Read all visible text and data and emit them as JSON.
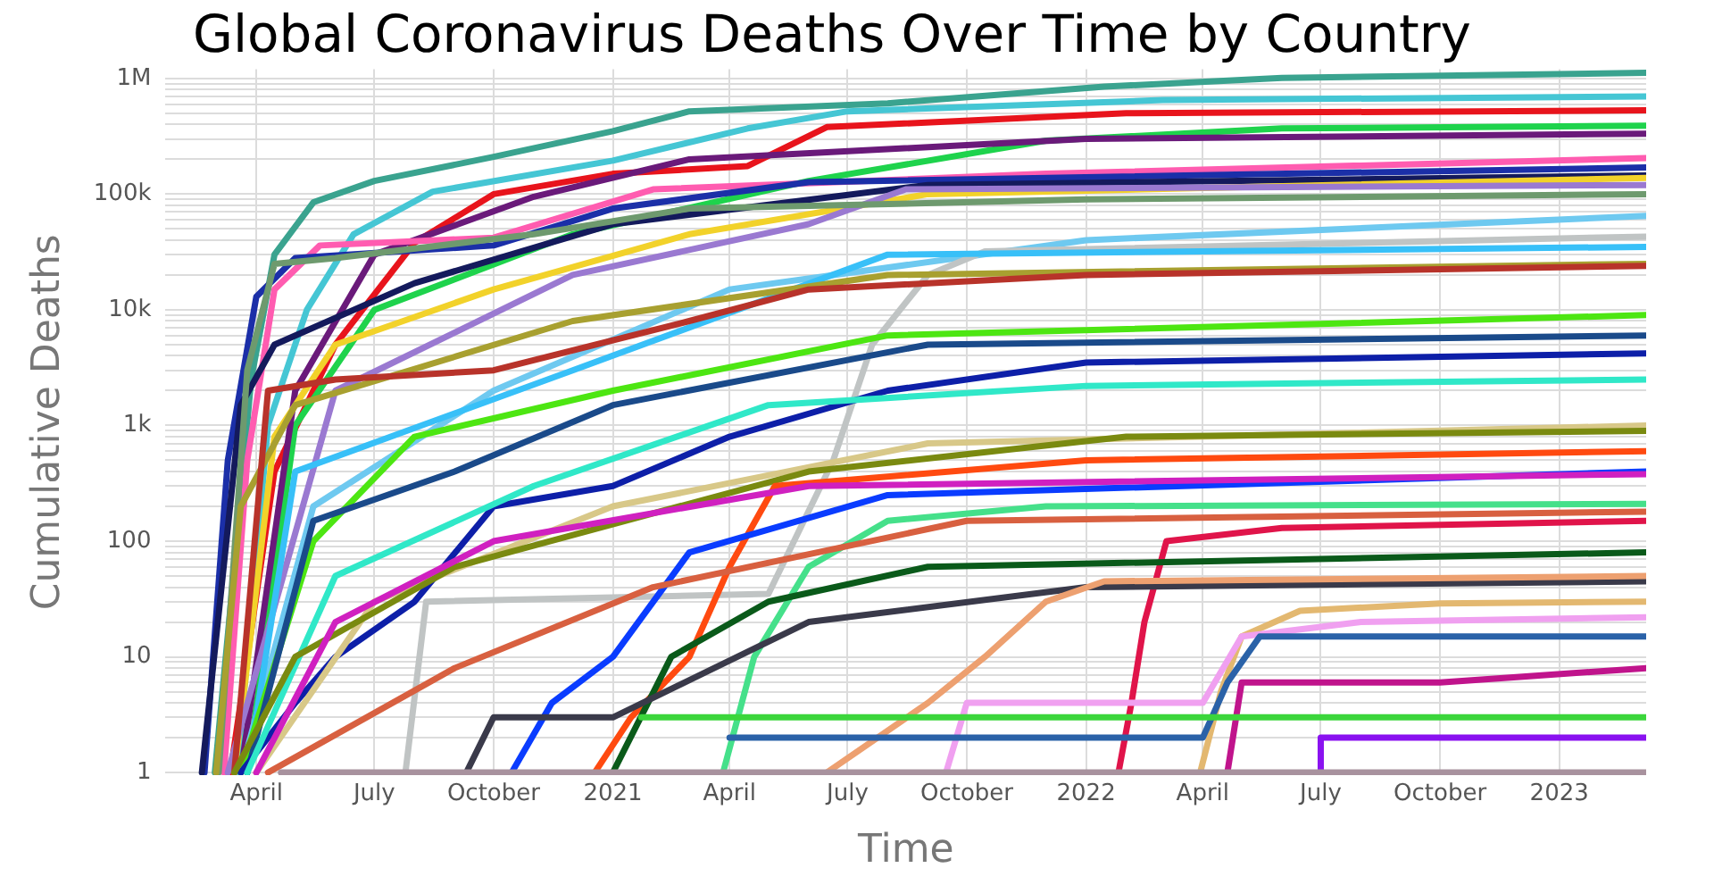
{
  "chart_data": {
    "type": "line",
    "title": "Global Coronavirus Deaths Over Time by Country",
    "xlabel": "Time",
    "ylabel": "Cumulative Deaths",
    "log": "y",
    "grid": true,
    "legend": false,
    "marker": "none",
    "line_style": "solid",
    "xlim": [
      "2020-01-22",
      "2023-03-09"
    ],
    "xticks": [
      {
        "value": "2020-04-01",
        "label": "April"
      },
      {
        "value": "2020-07-01",
        "label": "July"
      },
      {
        "value": "2020-10-01",
        "label": "October"
      },
      {
        "value": "2021-01-01",
        "label": "2021"
      },
      {
        "value": "2021-04-01",
        "label": "April"
      },
      {
        "value": "2021-07-01",
        "label": "July"
      },
      {
        "value": "2021-10-01",
        "label": "October"
      },
      {
        "value": "2022-01-01",
        "label": "2022"
      },
      {
        "value": "2022-04-01",
        "label": "April"
      },
      {
        "value": "2022-07-01",
        "label": "July"
      },
      {
        "value": "2022-10-01",
        "label": "October"
      },
      {
        "value": "2023-01-01",
        "label": "2023"
      }
    ],
    "ylim": [
      0.95,
      1200000
    ],
    "yticks": [
      1,
      {
        "value": 2,
        "label": null
      },
      {
        "value": 3,
        "label": null
      },
      {
        "value": 4,
        "label": null
      },
      {
        "value": 5,
        "label": null
      },
      {
        "value": 6,
        "label": null
      },
      {
        "value": 7,
        "label": null
      },
      {
        "value": 8,
        "label": null
      },
      {
        "value": 9,
        "label": null
      },
      10,
      {
        "value": 20,
        "label": null
      },
      {
        "value": 30,
        "label": null
      },
      {
        "value": 40,
        "label": null
      },
      {
        "value": 50,
        "label": null
      },
      {
        "value": 60,
        "label": null
      },
      {
        "value": 70,
        "label": null
      },
      {
        "value": 80,
        "label": null
      },
      {
        "value": 90,
        "label": null
      },
      100,
      {
        "value": 200,
        "label": null
      },
      {
        "value": 300,
        "label": null
      },
      {
        "value": 400,
        "label": null
      },
      {
        "value": 500,
        "label": null
      },
      {
        "value": 600,
        "label": null
      },
      {
        "value": 700,
        "label": null
      },
      {
        "value": 800,
        "label": null
      },
      {
        "value": 900,
        "label": null
      },
      {
        "value": 1000,
        "label": "1k"
      },
      {
        "value": 2000,
        "label": null
      },
      {
        "value": 3000,
        "label": null
      },
      {
        "value": 4000,
        "label": null
      },
      {
        "value": 5000,
        "label": null
      },
      {
        "value": 6000,
        "label": null
      },
      {
        "value": 7000,
        "label": null
      },
      {
        "value": 8000,
        "label": null
      },
      {
        "value": 9000,
        "label": null
      },
      {
        "value": 10000,
        "label": "10k"
      },
      {
        "value": 20000,
        "label": null
      },
      {
        "value": 30000,
        "label": null
      },
      {
        "value": 40000,
        "label": null
      },
      {
        "value": 50000,
        "label": null
      },
      {
        "value": 60000,
        "label": null
      },
      {
        "value": 70000,
        "label": null
      },
      {
        "value": 80000,
        "label": null
      },
      {
        "value": 90000,
        "label": null
      },
      {
        "value": 100000,
        "label": "100k"
      },
      {
        "value": 200000,
        "label": null
      },
      {
        "value": 300000,
        "label": null
      },
      {
        "value": 400000,
        "label": null
      },
      {
        "value": 500000,
        "label": null
      },
      {
        "value": 600000,
        "label": null
      },
      {
        "value": 700000,
        "label": null
      },
      {
        "value": 800000,
        "label": null
      },
      {
        "value": 900000,
        "label": null
      },
      {
        "value": 1000000,
        "label": "1M"
      }
    ],
    "series": [
      {
        "color": "#a8929e",
        "x": [
          "2020-04-20",
          "2023-03-09"
        ],
        "values": [
          1,
          1
        ]
      },
      {
        "color": "#3bd63b",
        "x": [
          "2021-01-23",
          "2023-03-09"
        ],
        "values": [
          3,
          3
        ]
      },
      {
        "color": "#8a12f0",
        "x": [
          "2022-06-30",
          "2022-07-01",
          "2023-03-09"
        ],
        "values": [
          1,
          2,
          2
        ]
      },
      {
        "color": "#c0148c",
        "x": [
          "2022-04-20",
          "2022-05-01",
          "2022-10-01",
          "2023-03-09"
        ],
        "values": [
          1,
          6,
          6,
          8
        ]
      },
      {
        "color": "#2a62a8",
        "x": [
          "2021-04-01",
          "2022-04-01",
          "2022-04-20",
          "2022-05-15",
          "2023-03-09"
        ],
        "values": [
          2,
          2,
          6,
          15,
          15
        ]
      },
      {
        "color": "#f0a0f0",
        "x": [
          "2021-09-15",
          "2021-10-01",
          "2022-04-01",
          "2022-05-01",
          "2022-08-01",
          "2023-03-09"
        ],
        "values": [
          1,
          4,
          4,
          15,
          20,
          22
        ]
      },
      {
        "color": "#e3b870",
        "x": [
          "2022-03-30",
          "2022-04-15",
          "2022-05-01",
          "2022-06-15",
          "2022-10-01",
          "2023-03-09"
        ],
        "values": [
          1,
          5,
          15,
          25,
          29,
          30
        ]
      },
      {
        "color": "#eda070",
        "x": [
          "2021-06-15",
          "2021-09-01",
          "2021-10-15",
          "2021-12-01",
          "2022-01-15",
          "2023-03-09"
        ],
        "values": [
          1,
          4,
          10,
          30,
          45,
          50
        ]
      },
      {
        "color": "#3a3a4a",
        "x": [
          "2020-09-10",
          "2020-10-01",
          "2021-01-01",
          "2021-06-01",
          "2022-01-01",
          "2023-03-09"
        ],
        "values": [
          1,
          3,
          3,
          20,
          40,
          45
        ]
      },
      {
        "color": "#0a5a1a",
        "x": [
          "2021-01-01",
          "2021-02-15",
          "2021-05-01",
          "2021-09-01",
          "2023-03-09"
        ],
        "values": [
          1,
          10,
          30,
          60,
          80
        ]
      },
      {
        "color": "#e0144a",
        "x": [
          "2022-01-26",
          "2022-02-05",
          "2022-02-15",
          "2022-03-04",
          "2022-06-01",
          "2023-03-09"
        ],
        "values": [
          1,
          4,
          20,
          100,
          130,
          150
        ]
      },
      {
        "color": "#d86040",
        "x": [
          "2020-04-10",
          "2020-09-01",
          "2021-02-01",
          "2021-10-01",
          "2023-03-09"
        ],
        "values": [
          1,
          8,
          40,
          150,
          180
        ]
      },
      {
        "color": "#45e08a",
        "x": [
          "2021-03-27",
          "2021-04-20",
          "2021-06-01",
          "2021-08-01",
          "2021-12-01",
          "2023-03-09"
        ],
        "values": [
          1,
          10,
          60,
          150,
          200,
          210
        ]
      },
      {
        "color": "#d020c0",
        "x": [
          "2020-04-01",
          "2020-06-01",
          "2020-10-01",
          "2021-06-01",
          "2023-03-09"
        ],
        "values": [
          1,
          20,
          100,
          300,
          380
        ]
      },
      {
        "color": "#0a3cff",
        "x": [
          "2020-10-15",
          "2020-11-15",
          "2021-01-01",
          "2021-03-01",
          "2021-08-01",
          "2023-03-09"
        ],
        "values": [
          1,
          4,
          10,
          80,
          250,
          400
        ]
      },
      {
        "color": "#ff4a10",
        "x": [
          "2020-12-18",
          "2021-01-15",
          "2021-03-01",
          "2021-04-01",
          "2021-05-06",
          "2022-01-01",
          "2023-03-09"
        ],
        "values": [
          1,
          3,
          10,
          60,
          300,
          500,
          600
        ]
      },
      {
        "color": "#7a8a10",
        "x": [
          "2020-03-15",
          "2020-05-01",
          "2020-09-01",
          "2021-06-01",
          "2022-02-01",
          "2023-03-09"
        ],
        "values": [
          1,
          10,
          60,
          400,
          800,
          900
        ]
      },
      {
        "color": "#d8c888",
        "x": [
          "2020-04-01",
          "2020-07-01",
          "2021-01-01",
          "2021-09-01",
          "2023-03-09"
        ],
        "values": [
          1,
          30,
          200,
          700,
          1000
        ]
      },
      {
        "color": "#30e8c8",
        "x": [
          "2020-03-25",
          "2020-06-01",
          "2020-11-01",
          "2021-05-01",
          "2022-01-01",
          "2023-03-09"
        ],
        "values": [
          1,
          50,
          300,
          1500,
          2200,
          2500
        ]
      },
      {
        "color": "#0d1fa8",
        "x": [
          "2020-03-20",
          "2020-05-01",
          "2020-06-01",
          "2020-08-01",
          "2020-10-01",
          "2021-01-01",
          "2021-04-01",
          "2021-08-01",
          "2022-01-01",
          "2023-03-09"
        ],
        "values": [
          1,
          4,
          10,
          30,
          200,
          300,
          800,
          2000,
          3500,
          4200
        ]
      },
      {
        "color": "#1a4a8a",
        "x": [
          "2020-03-25",
          "2020-05-15",
          "2020-09-01",
          "2021-01-01",
          "2021-09-01",
          "2023-03-09"
        ],
        "values": [
          1,
          150,
          400,
          1500,
          5000,
          6000
        ]
      },
      {
        "color": "#4de612",
        "x": [
          "2020-03-20",
          "2020-05-15",
          "2020-08-01",
          "2021-01-01",
          "2021-08-01",
          "2023-03-09"
        ],
        "values": [
          1,
          100,
          800,
          2000,
          6000,
          9000
        ]
      },
      {
        "color": "#b8332a",
        "x": [
          "2020-03-15",
          "2020-04-10",
          "2020-06-01",
          "2020-10-01",
          "2021-03-01",
          "2021-06-01",
          "2022-01-01",
          "2023-03-09"
        ],
        "values": [
          1,
          2000,
          2500,
          3000,
          8000,
          15000,
          20000,
          24000
        ]
      },
      {
        "color": "#a8a030",
        "x": [
          "2020-03-01",
          "2020-03-20",
          "2020-05-01",
          "2020-12-01",
          "2021-08-01",
          "2023-03-09"
        ],
        "values": [
          1,
          200,
          1500,
          8000,
          20000,
          25000
        ]
      },
      {
        "color": "#38c0f8",
        "x": [
          "2020-03-25",
          "2020-05-01",
          "2020-12-01",
          "2021-08-01",
          "2023-03-09"
        ],
        "values": [
          1,
          400,
          3000,
          30000,
          35000
        ]
      },
      {
        "color": "#c0c4c4",
        "x": [
          "2020-07-25",
          "2020-08-10",
          "2021-05-01",
          "2021-06-20",
          "2021-07-20",
          "2021-09-01",
          "2021-10-15",
          "2023-03-09"
        ],
        "values": [
          1,
          30,
          35,
          500,
          5000,
          20000,
          32000,
          43000
        ]
      },
      {
        "color": "#6ec9f0",
        "x": [
          "2020-03-20",
          "2020-05-15",
          "2020-10-01",
          "2021-04-01",
          "2022-01-01",
          "2023-03-09"
        ],
        "values": [
          1,
          200,
          2000,
          15000,
          40000,
          65000
        ]
      },
      {
        "color": "#6e9a6e",
        "x": [
          "2020-03-03",
          "2020-03-25",
          "2020-04-15",
          "2020-06-01",
          "2020-11-01",
          "2021-03-01",
          "2022-01-01",
          "2023-03-09"
        ],
        "values": [
          1,
          3000,
          25000,
          28000,
          45000,
          75000,
          90000,
          100000
        ]
      },
      {
        "color": "#9a79d1",
        "x": [
          "2020-03-10",
          "2020-06-01",
          "2020-12-01",
          "2021-06-01",
          "2021-08-15",
          "2023-03-09"
        ],
        "values": [
          1,
          2000,
          20000,
          55000,
          110000,
          120000
        ]
      },
      {
        "color": "#f2d22a",
        "x": [
          "2020-03-15",
          "2020-04-15",
          "2020-06-01",
          "2020-10-01",
          "2021-03-01",
          "2021-09-01",
          "2023-03-09"
        ],
        "values": [
          1,
          800,
          5000,
          15000,
          45000,
          100000,
          138000
        ]
      },
      {
        "color": "#141a5c",
        "x": [
          "2020-02-19",
          "2020-03-20",
          "2020-04-15",
          "2020-08-01",
          "2021-01-01",
          "2021-09-01",
          "2023-03-09"
        ],
        "values": [
          1,
          1500,
          5000,
          17000,
          55000,
          120000,
          145000
        ]
      },
      {
        "color": "#1b2fa8",
        "x": [
          "2020-02-21",
          "2020-03-10",
          "2020-04-01",
          "2020-05-01",
          "2020-10-01",
          "2021-01-01",
          "2021-06-01",
          "2023-03-09"
        ],
        "values": [
          1,
          500,
          13000,
          28000,
          36000,
          75000,
          127000,
          170000
        ]
      },
      {
        "color": "#ff5cb0",
        "x": [
          "2020-03-07",
          "2020-03-25",
          "2020-04-15",
          "2020-05-20",
          "2020-10-01",
          "2021-02-01",
          "2021-12-01",
          "2023-03-09"
        ],
        "values": [
          1,
          500,
          15000,
          36000,
          42000,
          110000,
          150000,
          205000
        ]
      },
      {
        "color": "#6a1a7a",
        "x": [
          "2020-03-20",
          "2020-05-01",
          "2020-07-01",
          "2020-11-01",
          "2021-03-01",
          "2022-01-01",
          "2023-03-09"
        ],
        "values": [
          1,
          2000,
          30000,
          95000,
          200000,
          300000,
          333000
        ]
      },
      {
        "color": "#1ed34c",
        "x": [
          "2020-03-25",
          "2020-05-01",
          "2020-07-01",
          "2020-12-01",
          "2021-06-01",
          "2021-12-01",
          "2022-06-01",
          "2023-03-09"
        ],
        "values": [
          1,
          1000,
          10000,
          45000,
          130000,
          290000,
          370000,
          390000
        ]
      },
      {
        "color": "#e8141c",
        "x": [
          "2020-03-12",
          "2020-04-15",
          "2020-06-01",
          "2020-08-01",
          "2020-10-01",
          "2021-01-01",
          "2021-04-15",
          "2021-06-15",
          "2022-02-01",
          "2023-03-09"
        ],
        "values": [
          1,
          400,
          5000,
          38000,
          100000,
          150000,
          175000,
          380000,
          500000,
          530000
        ]
      },
      {
        "color": "#45c6d4",
        "x": [
          "2020-03-17",
          "2020-04-10",
          "2020-05-10",
          "2020-06-15",
          "2020-08-15",
          "2021-01-01",
          "2021-04-15",
          "2021-07-01",
          "2022-03-01",
          "2023-03-09"
        ],
        "values": [
          1,
          1000,
          10000,
          45000,
          105000,
          195000,
          370000,
          520000,
          650000,
          700000
        ]
      },
      {
        "color": "#3aa38f",
        "x": [
          "2020-02-29",
          "2020-03-15",
          "2020-03-28",
          "2020-04-15",
          "2020-05-15",
          "2020-07-01",
          "2020-10-01",
          "2021-01-01",
          "2021-03-01",
          "2021-08-01",
          "2022-01-15",
          "2022-06-01",
          "2023-03-09"
        ],
        "values": [
          1,
          60,
          2500,
          30000,
          85000,
          130000,
          210000,
          350000,
          520000,
          610000,
          850000,
          1010000,
          1120000
        ]
      }
    ]
  }
}
